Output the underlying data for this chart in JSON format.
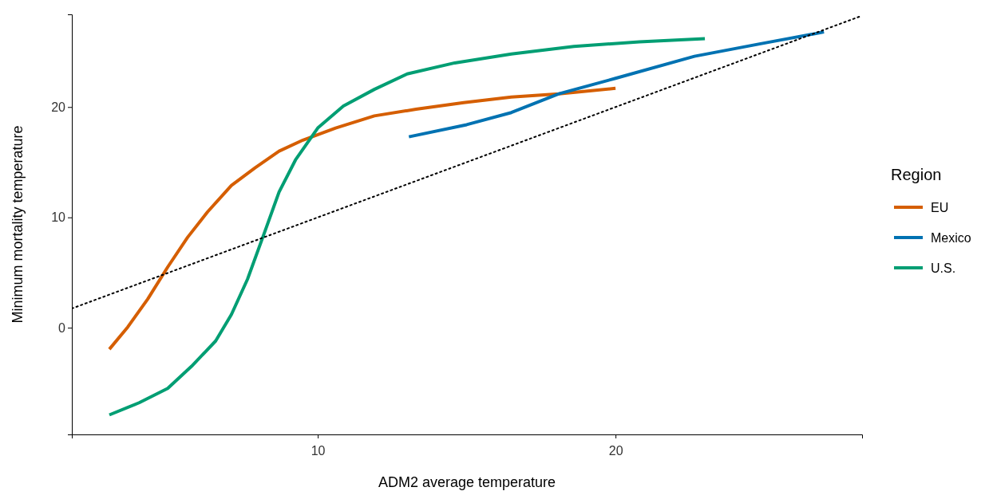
{
  "chart_data": {
    "type": "line",
    "xlabel": "ADM2 average temperature",
    "ylabel": "Minimum mortality temperature",
    "legend_title": "Region",
    "legend": "right",
    "grid": false,
    "xlim": [
      1.74,
      28.28
    ],
    "ylim": [
      -9.67,
      28.4
    ],
    "xticks": [
      10,
      20
    ],
    "yticks": [
      0,
      10,
      20
    ],
    "series": [
      {
        "name": "EU",
        "color": "#d55e00",
        "x": [
          3.0,
          3.62,
          4.29,
          4.96,
          5.63,
          6.3,
          7.1,
          7.9,
          8.7,
          9.5,
          10.6,
          11.9,
          13.3,
          14.9,
          16.5,
          18.1,
          20.0
        ],
        "values": [
          -1.95,
          0.07,
          2.6,
          5.5,
          8.2,
          10.5,
          12.9,
          14.5,
          16.0,
          17.0,
          18.1,
          19.2,
          19.8,
          20.4,
          20.9,
          21.2,
          21.7
        ]
      },
      {
        "name": "Mexico",
        "color": "#0072b2",
        "x": [
          13.06,
          15.0,
          16.5,
          18.1,
          20.0,
          22.65,
          24.8,
          27.0
        ],
        "values": [
          17.3,
          18.4,
          19.5,
          21.2,
          22.6,
          24.6,
          25.7,
          26.8
        ]
      },
      {
        "name": "U.S.",
        "color": "#009e73",
        "x": [
          3.0,
          4.0,
          4.96,
          5.76,
          6.57,
          7.1,
          7.64,
          8.18,
          8.7,
          9.25,
          10.0,
          10.86,
          11.9,
          13.0,
          14.6,
          16.5,
          18.6,
          20.8,
          23.0
        ],
        "values": [
          -7.9,
          -6.8,
          -5.5,
          -3.5,
          -1.2,
          1.2,
          4.4,
          8.4,
          12.3,
          15.2,
          18.1,
          20.1,
          21.6,
          23.0,
          24.0,
          24.8,
          25.5,
          25.9,
          26.2
        ]
      },
      {
        "color": "#000000",
        "line_style": "dotted",
        "x": [
          1.74,
          28.28
        ],
        "values": [
          1.74,
          28.28
        ]
      }
    ]
  }
}
